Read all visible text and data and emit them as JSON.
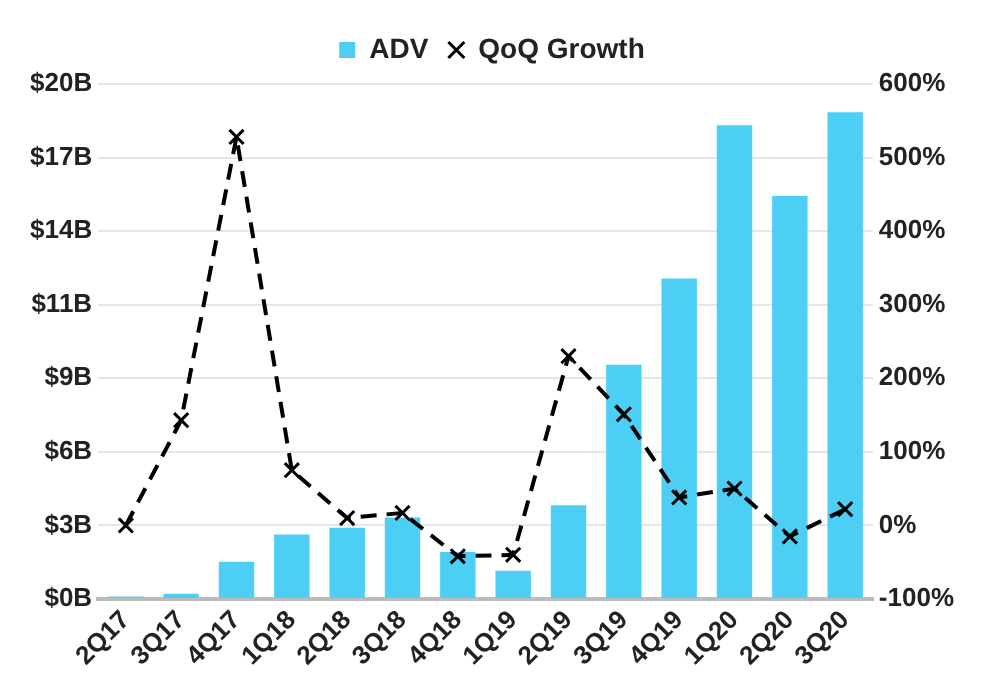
{
  "chart_data": {
    "type": "bar",
    "categories": [
      "2Q17",
      "3Q17",
      "4Q17",
      "1Q18",
      "2Q18",
      "3Q18",
      "4Q18",
      "1Q19",
      "2Q19",
      "3Q19",
      "4Q19",
      "1Q20",
      "2Q20",
      "3Q20"
    ],
    "series": [
      {
        "name": "ADV",
        "color": "#4dcff5",
        "values": [
          0.1,
          0.2,
          1.45,
          2.5,
          2.77,
          3.16,
          1.82,
          1.1,
          3.64,
          9.1,
          12.45,
          18.4,
          15.65,
          18.9
        ]
      },
      {
        "name": "QoQ Growth",
        "type": "line",
        "axis": "y2",
        "color": "#000000",
        "marker": "cross",
        "line_style": "dashed",
        "values": [
          0,
          143,
          528,
          75,
          10,
          17,
          -42,
          -40,
          230,
          151,
          38,
          50,
          -15,
          22
        ]
      }
    ],
    "ylim": [
      0,
      20
    ],
    "yticks": [
      {
        "value": 0,
        "label": "$0B"
      },
      {
        "value": 2.857,
        "label": "$3B"
      },
      {
        "value": 5.714,
        "label": "$6B"
      },
      {
        "value": 8.571,
        "label": "$9B"
      },
      {
        "value": 11.429,
        "label": "$11B"
      },
      {
        "value": 14.286,
        "label": "$14B"
      },
      {
        "value": 17.143,
        "label": "$17B"
      },
      {
        "value": 20,
        "label": "$20B"
      }
    ],
    "y2lim": [
      -100,
      600
    ],
    "y2ticks": [
      {
        "value": -100,
        "label": "-100%"
      },
      {
        "value": 0,
        "label": "0%"
      },
      {
        "value": 100,
        "label": "100%"
      },
      {
        "value": 200,
        "label": "200%"
      },
      {
        "value": 300,
        "label": "300%"
      },
      {
        "value": 400,
        "label": "400%"
      },
      {
        "value": 500,
        "label": "500%"
      },
      {
        "value": 600,
        "label": "600%"
      }
    ],
    "grid": "y",
    "legend": "top"
  }
}
